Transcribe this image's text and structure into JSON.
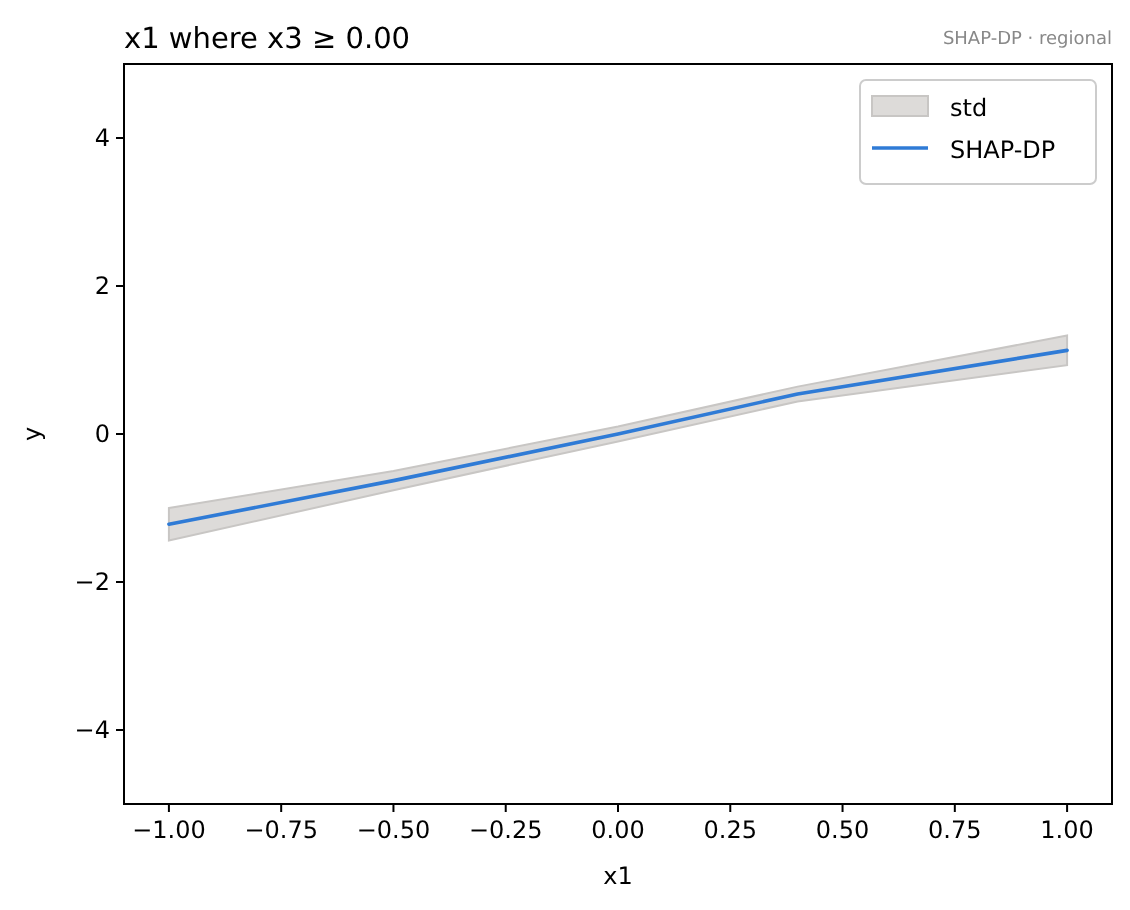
{
  "chart_data": {
    "type": "line",
    "title": "x1 where x3 ≥ 0.00",
    "subtitle": "SHAP-DP · regional",
    "xlabel": "x1",
    "ylabel": "y",
    "annotations": [
      "std"
    ],
    "x": [
      -1,
      -0.5,
      0,
      0.4,
      1
    ],
    "series": [
      {
        "name": "SHAP-DP",
        "color": "#2f7bd6",
        "values": [
          -1.22,
          -0.63,
          0.0,
          0.54,
          1.13
        ],
        "lower": [
          -1.44,
          -0.76,
          -0.1,
          0.44,
          0.93
        ],
        "upper": [
          -1.0,
          -0.5,
          0.1,
          0.64,
          1.33
        ]
      }
    ],
    "xlim": [
      -1.1,
      1.1
    ],
    "xticks": [
      {
        "value": -1,
        "label": "−1.00"
      },
      {
        "value": -0.75,
        "label": "−0.75"
      },
      {
        "value": -0.5,
        "label": "−0.50"
      },
      {
        "value": -0.25,
        "label": "−0.25"
      },
      {
        "value": 0,
        "label": "0.00"
      },
      {
        "value": 0.25,
        "label": "0.25"
      },
      {
        "value": 0.5,
        "label": "0.50"
      },
      {
        "value": 0.75,
        "label": "0.75"
      },
      {
        "value": 1,
        "label": "1.00"
      }
    ],
    "ylim": [
      -5,
      5
    ],
    "yticks": [
      {
        "value": -4,
        "label": "−4"
      },
      {
        "value": -2,
        "label": "−2"
      },
      0,
      2,
      4
    ],
    "legend": "top right",
    "grid": false,
    "line_style": "solid",
    "marker": "none"
  }
}
